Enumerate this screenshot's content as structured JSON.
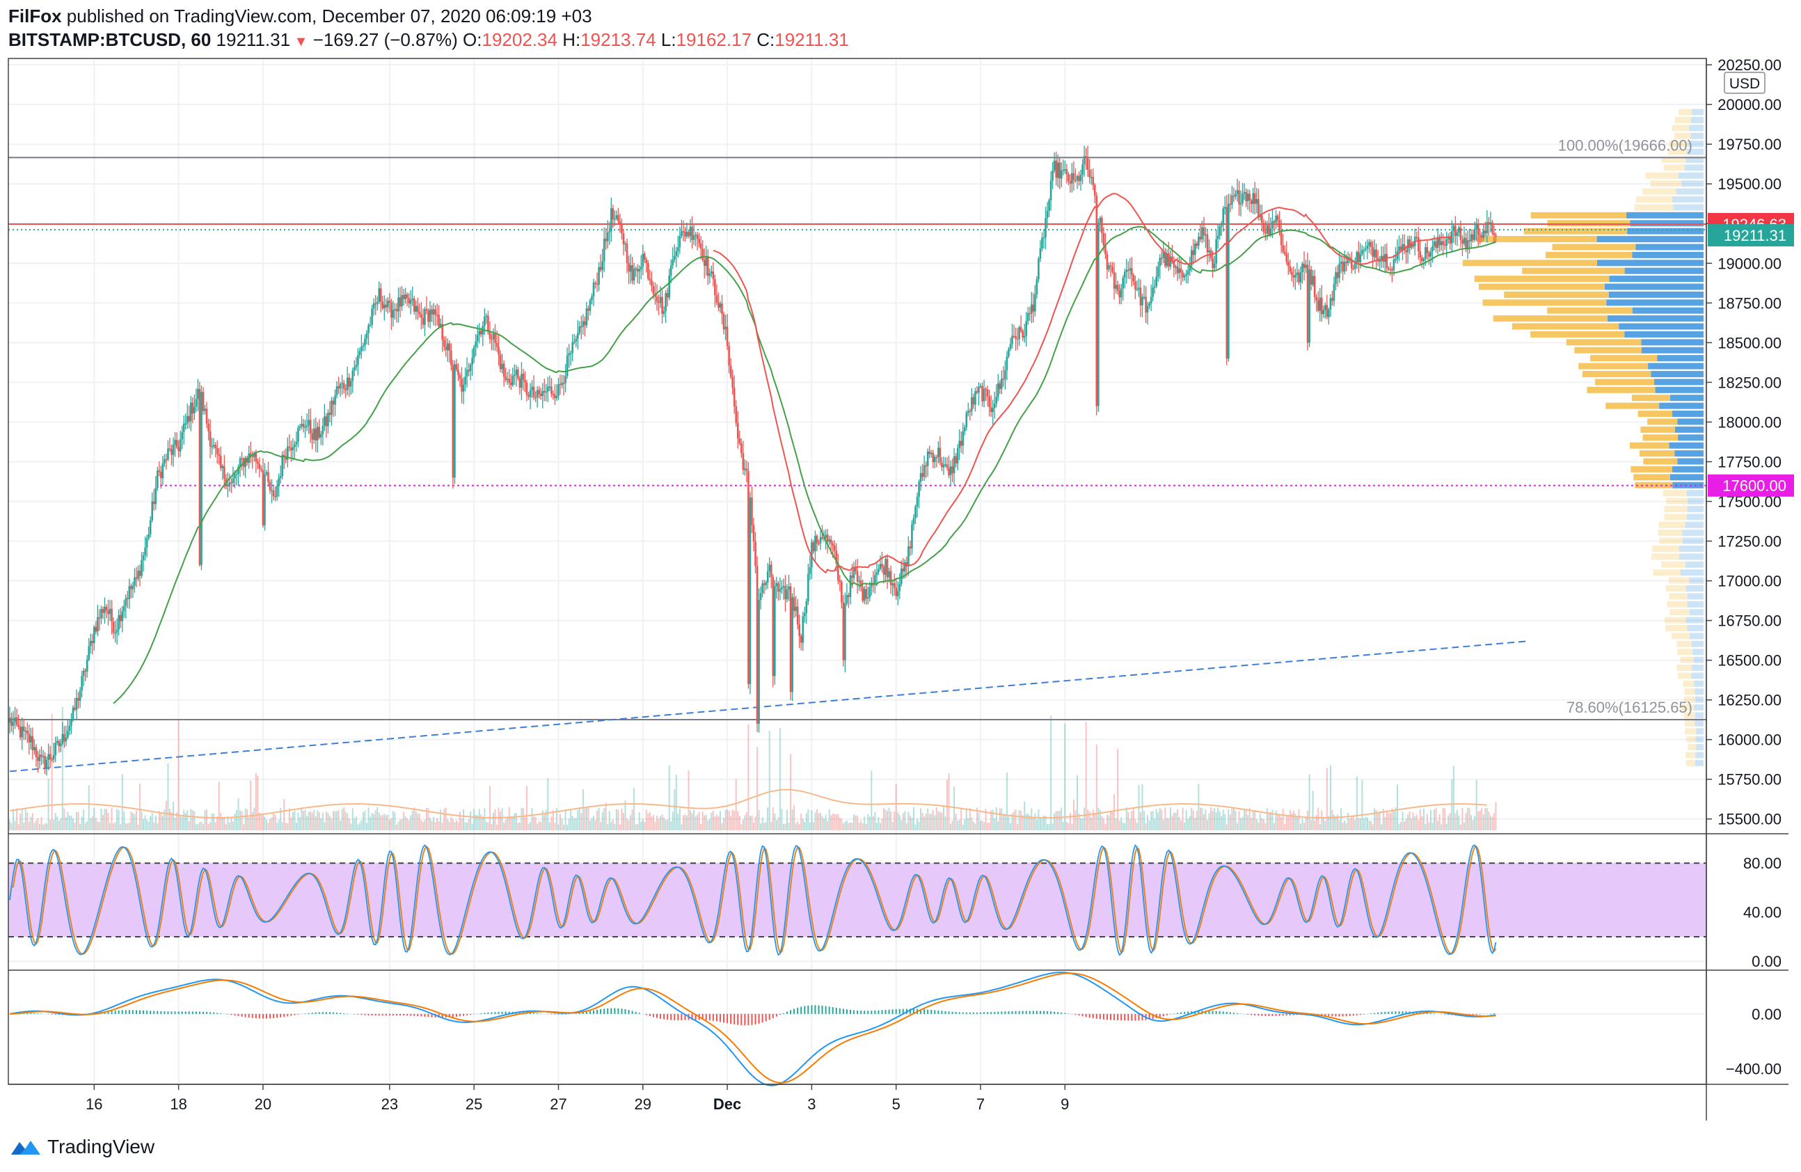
{
  "header": {
    "author": "FilFox",
    "published_text": "published on TradingView.com, December 07, 2020 06:09:19 +03",
    "symbol": "BITSTAMP:BTCUSD, 60",
    "last": "19211.31",
    "change": "−169.27 (−0.87%)",
    "o_label": "O:",
    "o_value": "19202.34",
    "h_label": "H:",
    "h_value": "19213.74",
    "l_label": "L:",
    "l_value": "19162.17",
    "c_label": "C:",
    "c_value": "19211.31"
  },
  "footer": {
    "logo_text": "TradingView"
  },
  "colors": {
    "up": "#26a69a",
    "down": "#ef5350",
    "ma_fast": "#ef5350",
    "ma_slow": "#43a047",
    "trend": "#3b7dd8",
    "support": "#e91ee6",
    "stoch_band": "#e6c8fb",
    "stoch_k": "#2196f3",
    "stoch_d": "#f57c00",
    "macd": "#2196f3",
    "signal": "#f57c00",
    "vp_up": "#4d9de0",
    "vp_down": "#f5c35a"
  },
  "chart_data": [
    {
      "type": "candlestick",
      "panel": "price",
      "currency": "USD",
      "y_ticks": [
        15500,
        15750,
        16000,
        16250,
        16500,
        16750,
        17000,
        17250,
        17500,
        17750,
        18000,
        18250,
        18500,
        18750,
        19000,
        19250,
        19500,
        19750,
        20000,
        20250
      ],
      "ylim": [
        15420,
        20290
      ],
      "x_tick_labels": [
        "16",
        "18",
        "20",
        "23",
        "25",
        "27",
        "29",
        "Dec",
        "3",
        "5",
        "7",
        "9"
      ],
      "x_tick_index": [
        48,
        96,
        144,
        216,
        264,
        312,
        360,
        408,
        456,
        504,
        552,
        600
      ],
      "path": [
        [
          0,
          16120
        ],
        [
          6,
          16050
        ],
        [
          12,
          15990
        ],
        [
          18,
          15850
        ],
        [
          24,
          15900
        ],
        [
          30,
          16000
        ],
        [
          36,
          16150
        ],
        [
          42,
          16400
        ],
        [
          48,
          16700
        ],
        [
          54,
          16850
        ],
        [
          60,
          16700
        ],
        [
          66,
          16900
        ],
        [
          72,
          17000
        ],
        [
          78,
          17250
        ],
        [
          84,
          17650
        ],
        [
          90,
          17800
        ],
        [
          96,
          17850
        ],
        [
          102,
          18050
        ],
        [
          108,
          18200
        ],
        [
          114,
          17900
        ],
        [
          120,
          17700
        ],
        [
          126,
          17600
        ],
        [
          132,
          17750
        ],
        [
          138,
          17800
        ],
        [
          144,
          17700
        ],
        [
          150,
          17500
        ],
        [
          156,
          17800
        ],
        [
          162,
          17900
        ],
        [
          168,
          18000
        ],
        [
          174,
          17900
        ],
        [
          180,
          18000
        ],
        [
          186,
          18200
        ],
        [
          192,
          18250
        ],
        [
          198,
          18400
        ],
        [
          204,
          18600
        ],
        [
          210,
          18800
        ],
        [
          216,
          18700
        ],
        [
          222,
          18750
        ],
        [
          228,
          18750
        ],
        [
          234,
          18650
        ],
        [
          240,
          18700
        ],
        [
          246,
          18550
        ],
        [
          252,
          18350
        ],
        [
          258,
          18200
        ],
        [
          264,
          18500
        ],
        [
          270,
          18650
        ],
        [
          276,
          18500
        ],
        [
          282,
          18250
        ],
        [
          288,
          18300
        ],
        [
          294,
          18200
        ],
        [
          300,
          18150
        ],
        [
          306,
          18200
        ],
        [
          312,
          18200
        ],
        [
          318,
          18400
        ],
        [
          324,
          18550
        ],
        [
          330,
          18750
        ],
        [
          336,
          19000
        ],
        [
          342,
          19300
        ],
        [
          348,
          19200
        ],
        [
          354,
          18900
        ],
        [
          360,
          19050
        ],
        [
          366,
          18850
        ],
        [
          372,
          18700
        ],
        [
          378,
          19100
        ],
        [
          384,
          19200
        ],
        [
          390,
          19200
        ],
        [
          396,
          19000
        ],
        [
          402,
          18800
        ],
        [
          408,
          18500
        ],
        [
          414,
          17900
        ],
        [
          420,
          17600
        ],
        [
          426,
          16900
        ],
        [
          432,
          17050
        ],
        [
          438,
          16900
        ],
        [
          444,
          16950
        ],
        [
          450,
          16650
        ],
        [
          456,
          17200
        ],
        [
          462,
          17300
        ],
        [
          468,
          17200
        ],
        [
          474,
          16850
        ],
        [
          480,
          17050
        ],
        [
          486,
          16900
        ],
        [
          492,
          17050
        ],
        [
          498,
          17100
        ],
        [
          504,
          16950
        ],
        [
          510,
          17100
        ],
        [
          516,
          17550
        ],
        [
          522,
          17800
        ],
        [
          528,
          17800
        ],
        [
          534,
          17650
        ],
        [
          540,
          17850
        ],
        [
          546,
          18100
        ],
        [
          552,
          18200
        ],
        [
          558,
          18100
        ],
        [
          564,
          18250
        ],
        [
          570,
          18550
        ],
        [
          576,
          18550
        ],
        [
          582,
          18750
        ],
        [
          588,
          19200
        ],
        [
          594,
          19600
        ],
        [
          600,
          19550
        ],
        [
          606,
          19500
        ],
        [
          612,
          19650
        ],
        [
          618,
          19350
        ],
        [
          624,
          19000
        ],
        [
          630,
          18800
        ],
        [
          636,
          19000
        ],
        [
          642,
          18800
        ],
        [
          648,
          18700
        ],
        [
          654,
          19050
        ],
        [
          660,
          19000
        ],
        [
          666,
          18900
        ],
        [
          672,
          19050
        ],
        [
          678,
          19200
        ],
        [
          684,
          19000
        ],
        [
          690,
          19300
        ],
        [
          696,
          19400
        ],
        [
          702,
          19450
        ],
        [
          708,
          19400
        ],
        [
          714,
          19200
        ],
        [
          720,
          19300
        ],
        [
          726,
          19000
        ],
        [
          732,
          18900
        ],
        [
          738,
          19000
        ],
        [
          744,
          18750
        ],
        [
          750,
          18700
        ],
        [
          756,
          19000
        ],
        [
          762,
          19000
        ],
        [
          768,
          19050
        ],
        [
          774,
          19100
        ],
        [
          780,
          19050
        ],
        [
          786,
          19000
        ],
        [
          792,
          19100
        ],
        [
          798,
          19150
        ],
        [
          804,
          19050
        ],
        [
          810,
          19100
        ],
        [
          816,
          19150
        ],
        [
          822,
          19200
        ],
        [
          828,
          19120
        ],
        [
          834,
          19211
        ]
      ],
      "last_price_label": "19211.31",
      "high_line_label": "19246.63",
      "support_label": "17600.00",
      "fib_levels": [
        {
          "label": "100.00%(19666.00)",
          "value": 19666.0
        },
        {
          "label": "78.60%(16125.65)",
          "value": 16125.65
        }
      ],
      "trendline": {
        "x": [
          0,
          846
        ],
        "y": [
          15800,
          16620
        ]
      }
    },
    {
      "type": "line",
      "panel": "stoch_rsi",
      "y_ticks": [
        0,
        40,
        80
      ],
      "band": [
        20,
        80
      ],
      "ylim": [
        -5,
        100
      ]
    },
    {
      "type": "line",
      "panel": "macd",
      "y_ticks": [
        0,
        -400
      ],
      "y_tick_labels": [
        "0.00",
        "−400.00"
      ],
      "ylim": [
        -500,
        300
      ]
    }
  ]
}
